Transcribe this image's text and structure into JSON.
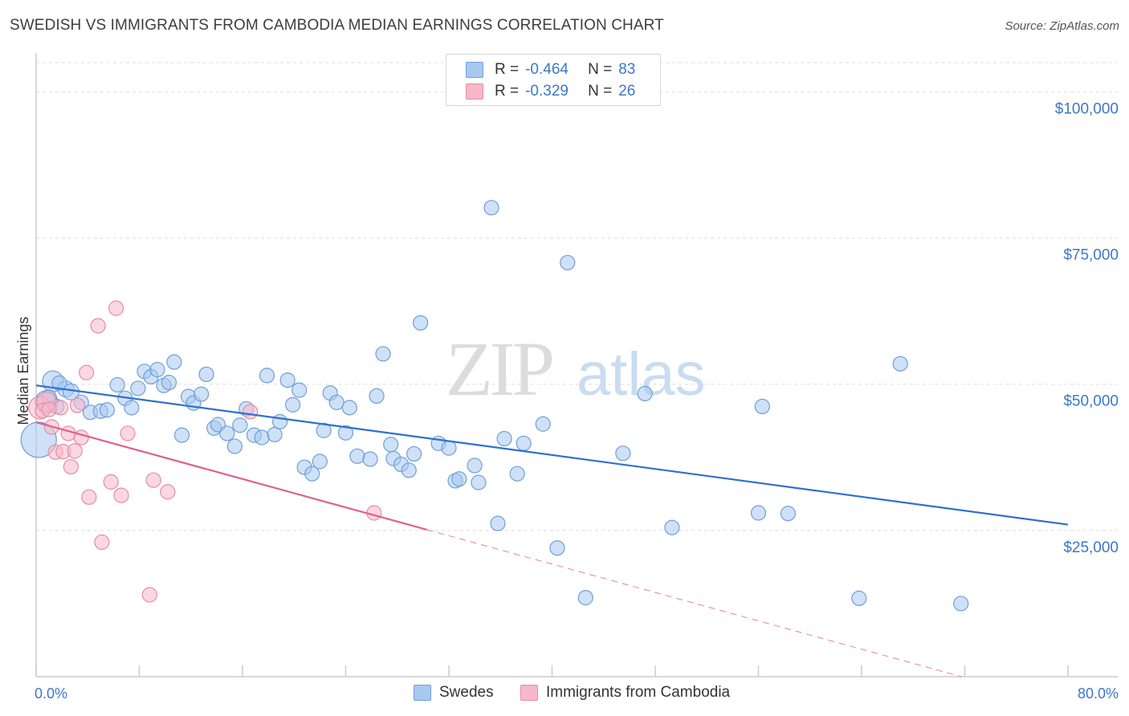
{
  "title": "SWEDISH VS IMMIGRANTS FROM CAMBODIA MEDIAN EARNINGS CORRELATION CHART",
  "source": "Source: ZipAtlas.com",
  "watermark": {
    "zip": "ZIP",
    "atlas": "atlas"
  },
  "legend": {
    "rows": [
      {
        "r_label": "R =",
        "r_value": "-0.464",
        "n_label": "N =",
        "n_value": "83",
        "color": "#a8c8f0",
        "border": "#6f9fd8"
      },
      {
        "r_label": "R =",
        "r_value": "-0.329",
        "n_label": "N =",
        "n_value": "26",
        "color": "#f7b8c8",
        "border": "#e88aa6"
      }
    ]
  },
  "bottom_legend": [
    {
      "label": "Swedes",
      "color": "#a8c8f0",
      "border": "#6f9fd8"
    },
    {
      "label": "Immigrants from Cambodia",
      "color": "#f7b8c8",
      "border": "#e88aa6"
    }
  ],
  "chart_data": {
    "type": "scatter",
    "ylabel": "Median Earnings",
    "xlim": [
      0,
      80
    ],
    "ylim": [
      0,
      105000
    ],
    "x_tick_labels": {
      "min": "0.0%",
      "max": "80.0%"
    },
    "y_ticks": [
      {
        "value": 25000,
        "label": "$25,000"
      },
      {
        "value": 50000,
        "label": "$50,000"
      },
      {
        "value": 75000,
        "label": "$75,000"
      },
      {
        "value": 100000,
        "label": "$100,000"
      }
    ],
    "series": [
      {
        "name": "Swedes",
        "color": "#a8c8f0",
        "stroke": "#6f9fd8",
        "trend": {
          "x0": 0,
          "y0": 49800,
          "x1": 80,
          "y1": 26000,
          "solid_until": 80,
          "color": "#2f6fd0"
        },
        "points": [
          [
            0.2,
            40500,
            22
          ],
          [
            1.3,
            50500,
            13
          ],
          [
            0.8,
            47000,
            14
          ],
          [
            2.3,
            49200,
            10
          ],
          [
            1.8,
            50200,
            9
          ],
          [
            2.7,
            48700,
            10
          ],
          [
            3.5,
            46900,
            9
          ],
          [
            4.2,
            45200,
            9
          ],
          [
            5.0,
            45400,
            9
          ],
          [
            5.5,
            45600,
            9
          ],
          [
            6.3,
            49900,
            9
          ],
          [
            6.9,
            47600,
            9
          ],
          [
            7.4,
            46000,
            9
          ],
          [
            7.9,
            49300,
            9
          ],
          [
            8.4,
            52200,
            9
          ],
          [
            8.9,
            51300,
            9
          ],
          [
            9.4,
            52500,
            9
          ],
          [
            9.9,
            49800,
            9
          ],
          [
            10.3,
            50300,
            9
          ],
          [
            10.7,
            53800,
            9
          ],
          [
            11.3,
            41300,
            9
          ],
          [
            11.8,
            47900,
            9
          ],
          [
            12.2,
            46800,
            9
          ],
          [
            12.8,
            48300,
            9
          ],
          [
            13.2,
            51700,
            9
          ],
          [
            13.8,
            42500,
            9
          ],
          [
            14.1,
            43100,
            9
          ],
          [
            14.8,
            41600,
            9
          ],
          [
            15.4,
            39400,
            9
          ],
          [
            15.8,
            43000,
            9
          ],
          [
            16.3,
            45800,
            9
          ],
          [
            16.9,
            41300,
            9
          ],
          [
            17.5,
            40900,
            9
          ],
          [
            17.9,
            51500,
            9
          ],
          [
            18.5,
            41400,
            9
          ],
          [
            18.9,
            43600,
            9
          ],
          [
            19.5,
            50700,
            9
          ],
          [
            19.9,
            46500,
            9
          ],
          [
            20.4,
            49000,
            9
          ],
          [
            20.8,
            35800,
            9
          ],
          [
            21.4,
            34700,
            9
          ],
          [
            22.0,
            36800,
            9
          ],
          [
            22.3,
            42100,
            9
          ],
          [
            22.8,
            48500,
            9
          ],
          [
            23.3,
            46900,
            9
          ],
          [
            24.0,
            41700,
            9
          ],
          [
            24.3,
            46000,
            9
          ],
          [
            24.9,
            37700,
            9
          ],
          [
            25.9,
            37200,
            9
          ],
          [
            26.4,
            48000,
            9
          ],
          [
            26.9,
            55200,
            9
          ],
          [
            27.5,
            39700,
            9
          ],
          [
            27.7,
            37300,
            9
          ],
          [
            28.3,
            36300,
            9
          ],
          [
            28.9,
            35300,
            9
          ],
          [
            29.3,
            38100,
            9
          ],
          [
            29.8,
            60500,
            9
          ],
          [
            31.2,
            39900,
            9
          ],
          [
            32.0,
            39100,
            9
          ],
          [
            32.5,
            33500,
            9
          ],
          [
            32.8,
            33800,
            9
          ],
          [
            34.0,
            36100,
            9
          ],
          [
            34.3,
            33200,
            9
          ],
          [
            35.3,
            80200,
            9
          ],
          [
            35.8,
            26200,
            9
          ],
          [
            36.3,
            40700,
            9
          ],
          [
            37.3,
            34700,
            9
          ],
          [
            37.8,
            39900,
            9
          ],
          [
            39.3,
            43200,
            9
          ],
          [
            40.4,
            22000,
            9
          ],
          [
            41.2,
            70800,
            9
          ],
          [
            42.6,
            13500,
            9
          ],
          [
            45.5,
            38200,
            9
          ],
          [
            47.2,
            48400,
            9
          ],
          [
            49.3,
            25500,
            9
          ],
          [
            56.0,
            28000,
            9
          ],
          [
            56.3,
            46200,
            9
          ],
          [
            58.3,
            27900,
            9
          ],
          [
            63.8,
            13400,
            9
          ],
          [
            67.0,
            53500,
            9
          ],
          [
            71.7,
            12500,
            9
          ],
          [
            1.0,
            47800,
            9
          ],
          [
            1.6,
            46200,
            9
          ]
        ]
      },
      {
        "name": "Immigrants from Cambodia",
        "color": "#f7b8c8",
        "stroke": "#e88aa6",
        "trend": {
          "x0": 0,
          "y0": 43500,
          "x1": 80,
          "y1": -5000,
          "solid_until": 30.3,
          "color": "#e0608a"
        },
        "points": [
          [
            0.3,
            46000,
            14
          ],
          [
            0.8,
            47000,
            12
          ],
          [
            1.2,
            42700,
            9
          ],
          [
            1.5,
            38400,
            9
          ],
          [
            1.9,
            46000,
            9
          ],
          [
            2.1,
            38500,
            9
          ],
          [
            2.5,
            41600,
            9
          ],
          [
            2.7,
            35900,
            9
          ],
          [
            3.0,
            38600,
            9
          ],
          [
            3.2,
            46400,
            9
          ],
          [
            3.5,
            40900,
            9
          ],
          [
            3.9,
            52000,
            9
          ],
          [
            4.1,
            30700,
            9
          ],
          [
            4.8,
            60000,
            9
          ],
          [
            5.1,
            23000,
            9
          ],
          [
            5.8,
            33300,
            9
          ],
          [
            6.2,
            63000,
            9
          ],
          [
            6.6,
            31000,
            9
          ],
          [
            7.1,
            41600,
            9
          ],
          [
            8.8,
            14000,
            9
          ],
          [
            9.1,
            33600,
            9
          ],
          [
            10.2,
            31600,
            9
          ],
          [
            16.6,
            45300,
            9
          ],
          [
            26.2,
            28000,
            9
          ],
          [
            0.5,
            45500,
            9
          ],
          [
            1.0,
            45700,
            9
          ]
        ]
      }
    ]
  }
}
